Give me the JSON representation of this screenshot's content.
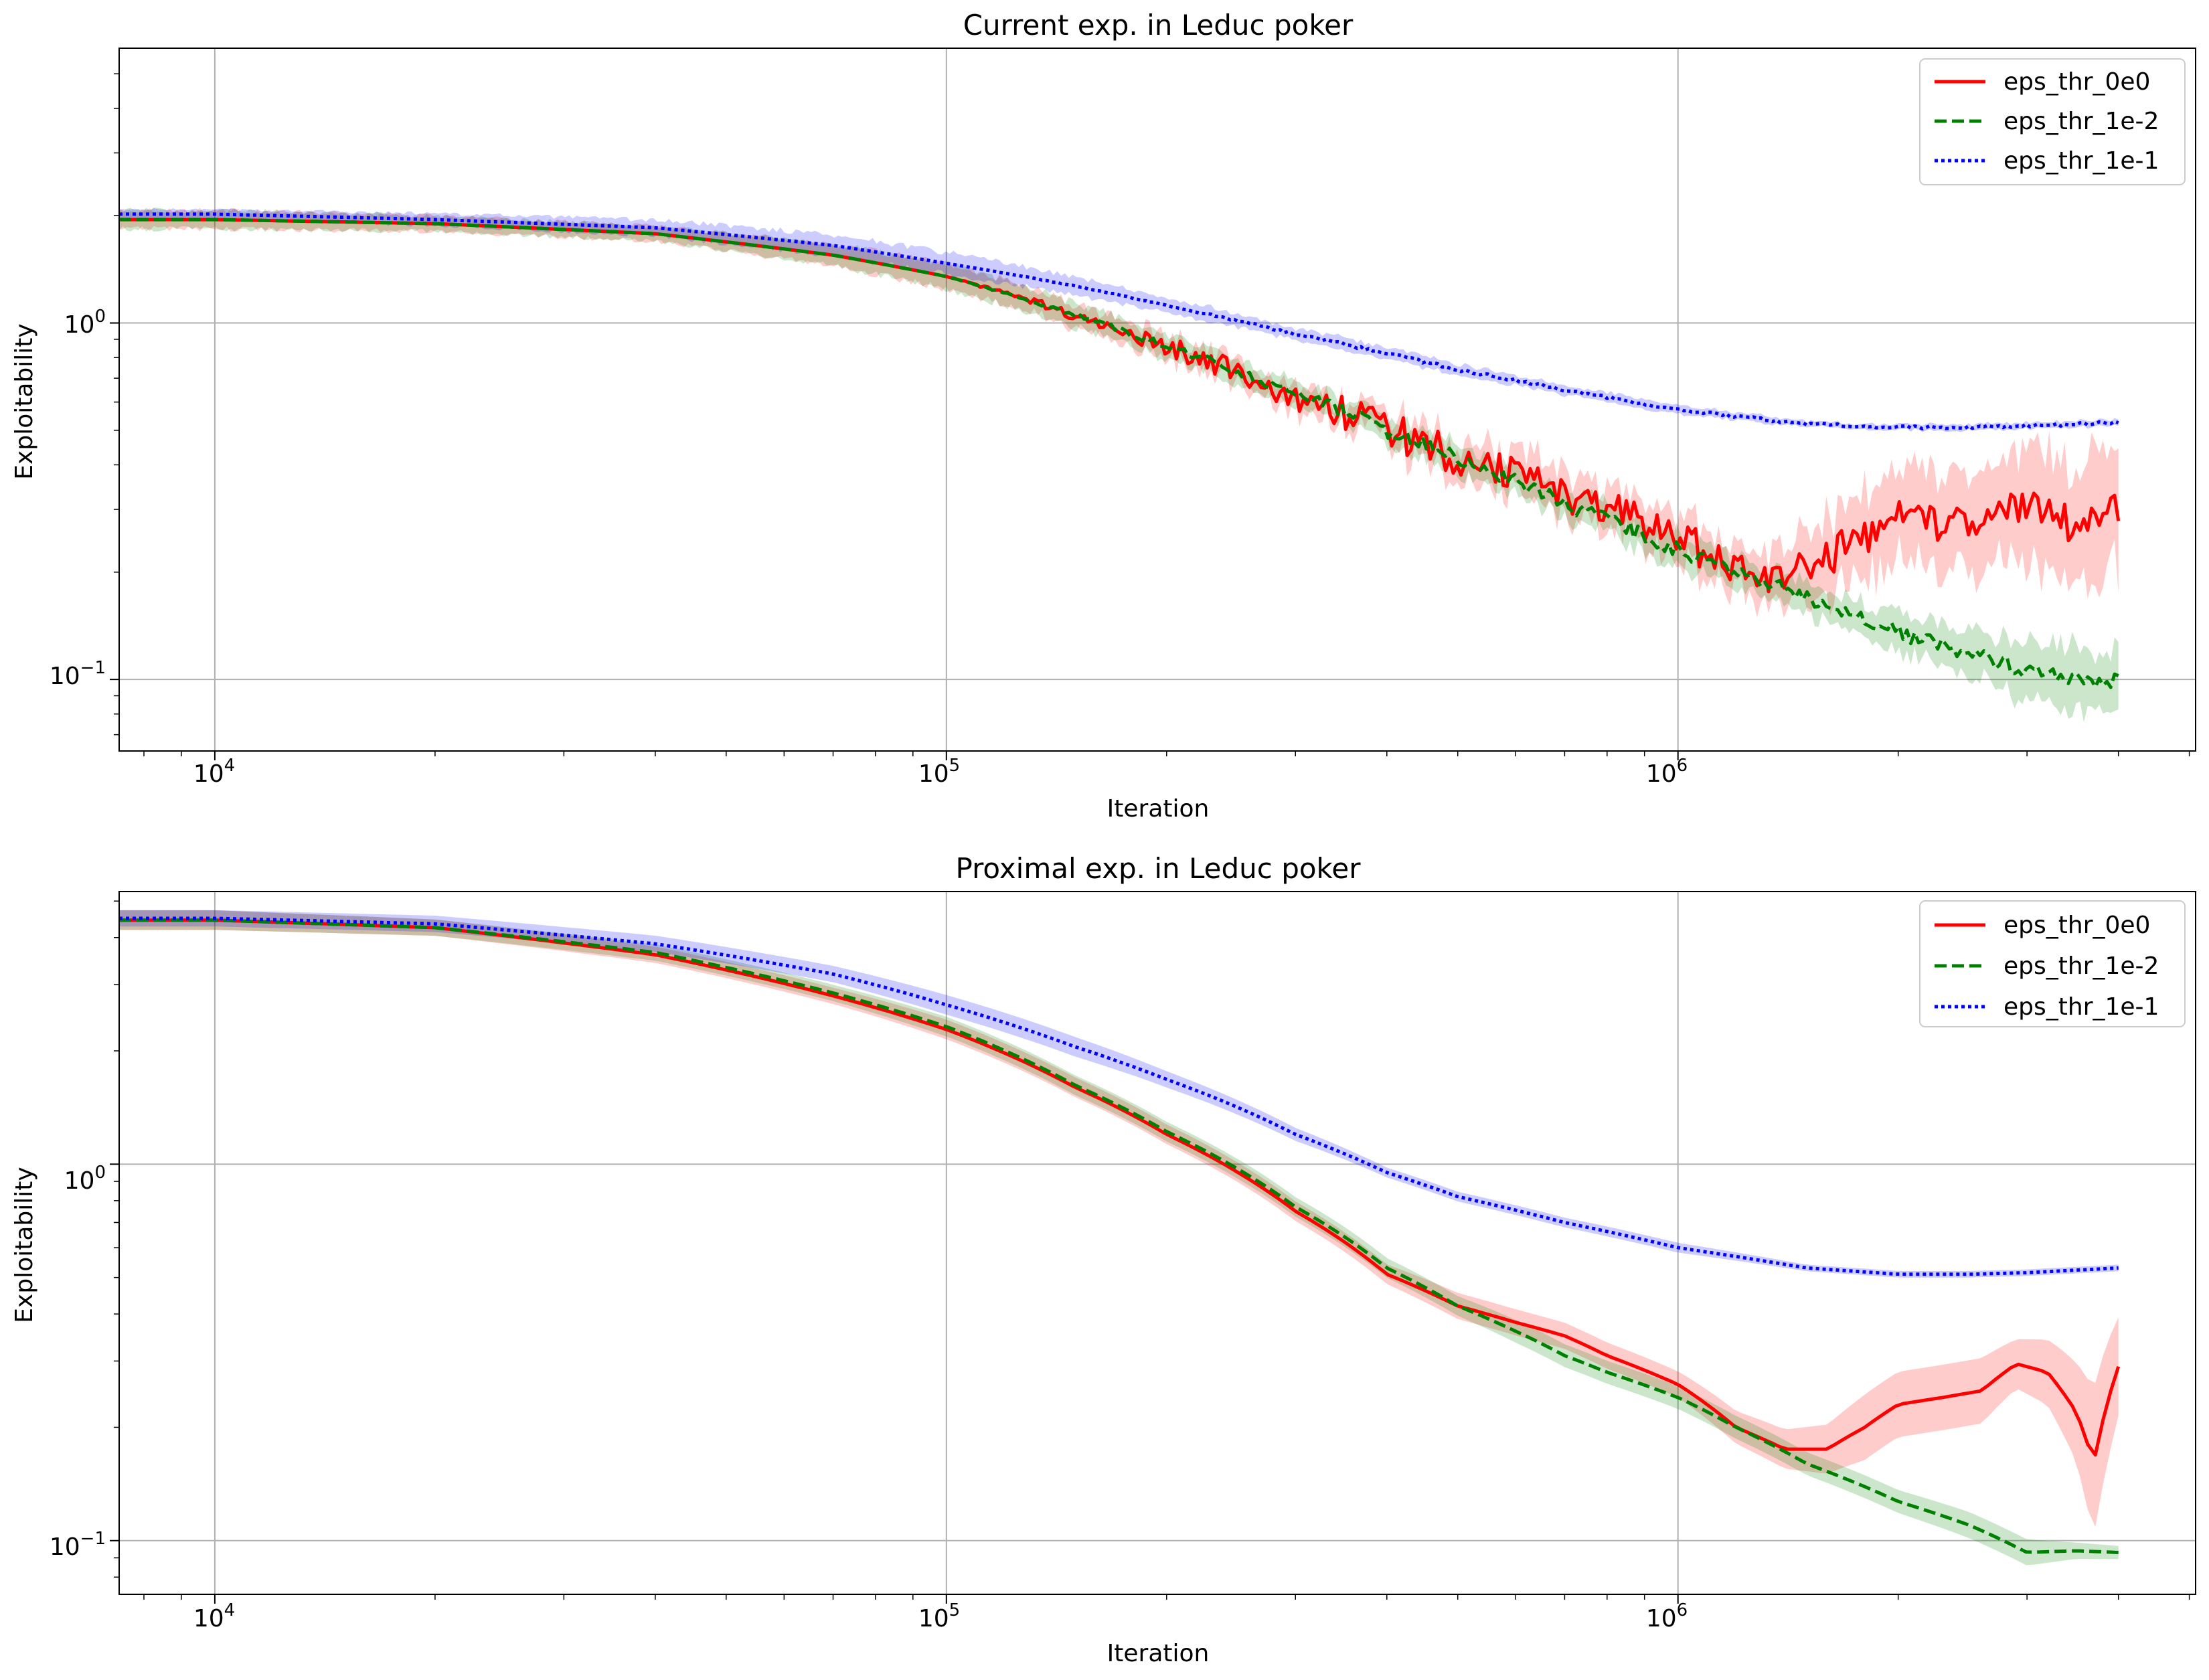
{
  "chart_data": [
    {
      "type": "line",
      "title": "Current exp. in Leduc poker",
      "xlabel": "Iteration",
      "ylabel": "Exploitability",
      "xscale": "log",
      "yscale": "log",
      "xlim": [
        7400,
        5100000
      ],
      "ylim": [
        0.063,
        5.9
      ],
      "xticks": [
        {
          "value": 10000,
          "base": "10",
          "exp": "4"
        },
        {
          "value": 100000,
          "base": "10",
          "exp": "5"
        },
        {
          "value": 1000000,
          "base": "10",
          "exp": "6"
        }
      ],
      "yticks": [
        {
          "value": 0.1,
          "base": "10",
          "exp": "−1"
        },
        {
          "value": 1,
          "base": "10",
          "exp": "0"
        }
      ],
      "grid": true,
      "legend_position": "top-right",
      "series": [
        {
          "name": "eps_thr_0e0",
          "color": "#ff0000",
          "style": "solid",
          "x": [
            7400,
            10000,
            20000,
            40000,
            70000,
            100000,
            150000,
            200000,
            300000,
            400000,
            500000,
            600000,
            700000,
            800000,
            1000000,
            1200000,
            1400000,
            1600000,
            2000000,
            2500000,
            3000000,
            3500000,
            4000000
          ],
          "y": [
            1.95,
            1.95,
            1.9,
            1.78,
            1.55,
            1.35,
            1.05,
            0.86,
            0.62,
            0.5,
            0.42,
            0.37,
            0.33,
            0.3,
            0.25,
            0.2,
            0.19,
            0.22,
            0.28,
            0.27,
            0.31,
            0.27,
            0.3
          ],
          "band": [
            0.06,
            0.06,
            0.05,
            0.05,
            0.07,
            0.08,
            0.08,
            0.08,
            0.08,
            0.1,
            0.12,
            0.14,
            0.15,
            0.15,
            0.15,
            0.15,
            0.18,
            0.25,
            0.3,
            0.3,
            0.35,
            0.4,
            0.4
          ],
          "noise": 0.12
        },
        {
          "name": "eps_thr_1e-2",
          "color": "#008000",
          "style": "dashed",
          "x": [
            7400,
            10000,
            20000,
            40000,
            70000,
            100000,
            150000,
            200000,
            300000,
            400000,
            500000,
            600000,
            700000,
            800000,
            1000000,
            1200000,
            1500000,
            2000000,
            2500000,
            3000000,
            3500000,
            4000000
          ],
          "y": [
            1.95,
            1.95,
            1.9,
            1.78,
            1.55,
            1.35,
            1.05,
            0.86,
            0.63,
            0.5,
            0.42,
            0.36,
            0.31,
            0.28,
            0.23,
            0.2,
            0.17,
            0.135,
            0.118,
            0.106,
            0.1,
            0.099
          ],
          "band": [
            0.06,
            0.06,
            0.05,
            0.05,
            0.07,
            0.08,
            0.08,
            0.08,
            0.08,
            0.08,
            0.09,
            0.09,
            0.1,
            0.1,
            0.1,
            0.1,
            0.1,
            0.12,
            0.15,
            0.2,
            0.22,
            0.2
          ],
          "noise": 0.05
        },
        {
          "name": "eps_thr_1e-1",
          "color": "#0000ff",
          "style": "dotted",
          "x": [
            7400,
            10000,
            20000,
            40000,
            70000,
            100000,
            150000,
            200000,
            300000,
            400000,
            500000,
            700000,
            1000000,
            1500000,
            2000000,
            2500000,
            3000000,
            4000000
          ],
          "y": [
            2.02,
            2.02,
            1.95,
            1.85,
            1.65,
            1.47,
            1.27,
            1.12,
            0.93,
            0.82,
            0.74,
            0.65,
            0.57,
            0.52,
            0.51,
            0.51,
            0.515,
            0.525
          ],
          "band": [
            0.03,
            0.03,
            0.04,
            0.05,
            0.07,
            0.07,
            0.06,
            0.05,
            0.04,
            0.04,
            0.035,
            0.03,
            0.03,
            0.02,
            0.02,
            0.02,
            0.02,
            0.02
          ],
          "noise": 0.01
        }
      ]
    },
    {
      "type": "line",
      "title": "Proximal exp. in Leduc poker",
      "xlabel": "Iteration",
      "ylabel": "Exploitability",
      "xscale": "log",
      "yscale": "log",
      "xlim": [
        7400,
        5100000
      ],
      "ylim": [
        0.072,
        5.3
      ],
      "xticks": [
        {
          "value": 10000,
          "base": "10",
          "exp": "4"
        },
        {
          "value": 100000,
          "base": "10",
          "exp": "5"
        },
        {
          "value": 1000000,
          "base": "10",
          "exp": "6"
        }
      ],
      "yticks": [
        {
          "value": 0.1,
          "base": "10",
          "exp": "−1"
        },
        {
          "value": 1,
          "base": "10",
          "exp": "0"
        }
      ],
      "grid": true,
      "legend_position": "top-right",
      "series": [
        {
          "name": "eps_thr_0e0",
          "color": "#ff0000",
          "style": "solid",
          "x": [
            7400,
            10000,
            20000,
            40000,
            70000,
            100000,
            150000,
            200000,
            300000,
            400000,
            500000,
            600000,
            700000,
            800000,
            1000000,
            1200000,
            1400000,
            1600000,
            1800000,
            2000000,
            2300000,
            2600000,
            2900000,
            3200000,
            3500000,
            3700000,
            4000000
          ],
          "y": [
            4.45,
            4.45,
            4.25,
            3.6,
            2.8,
            2.28,
            1.6,
            1.2,
            0.75,
            0.51,
            0.42,
            0.38,
            0.35,
            0.31,
            0.26,
            0.2,
            0.175,
            0.175,
            0.2,
            0.23,
            0.24,
            0.25,
            0.295,
            0.28,
            0.22,
            0.16,
            0.29
          ],
          "band": [
            0.06,
            0.06,
            0.05,
            0.05,
            0.05,
            0.06,
            0.06,
            0.06,
            0.06,
            0.06,
            0.08,
            0.08,
            0.08,
            0.08,
            0.08,
            0.1,
            0.12,
            0.15,
            0.2,
            0.2,
            0.2,
            0.2,
            0.15,
            0.2,
            0.3,
            0.45,
            0.3
          ],
          "noise": 0
        },
        {
          "name": "eps_thr_1e-2",
          "color": "#008000",
          "style": "dashed",
          "x": [
            7400,
            10000,
            20000,
            40000,
            70000,
            100000,
            150000,
            200000,
            300000,
            400000,
            500000,
            600000,
            700000,
            800000,
            1000000,
            1200000,
            1500000,
            2000000,
            2500000,
            3000000,
            3500000,
            4000000
          ],
          "y": [
            4.45,
            4.45,
            4.25,
            3.65,
            2.85,
            2.32,
            1.62,
            1.22,
            0.77,
            0.53,
            0.42,
            0.36,
            0.31,
            0.28,
            0.24,
            0.2,
            0.16,
            0.127,
            0.11,
            0.093,
            0.094,
            0.093
          ],
          "band": [
            0.06,
            0.06,
            0.05,
            0.05,
            0.05,
            0.06,
            0.06,
            0.06,
            0.06,
            0.06,
            0.06,
            0.07,
            0.07,
            0.07,
            0.07,
            0.07,
            0.07,
            0.07,
            0.08,
            0.08,
            0.05,
            0.04
          ],
          "noise": 0
        },
        {
          "name": "eps_thr_1e-1",
          "color": "#0000ff",
          "style": "dotted",
          "x": [
            7400,
            10000,
            20000,
            40000,
            70000,
            100000,
            150000,
            200000,
            300000,
            400000,
            500000,
            700000,
            1000000,
            1500000,
            2000000,
            2500000,
            3000000,
            4000000
          ],
          "y": [
            4.5,
            4.5,
            4.35,
            3.85,
            3.2,
            2.65,
            2.05,
            1.68,
            1.2,
            0.95,
            0.82,
            0.7,
            0.6,
            0.53,
            0.51,
            0.51,
            0.515,
            0.53
          ],
          "band": [
            0.05,
            0.05,
            0.05,
            0.05,
            0.05,
            0.06,
            0.06,
            0.05,
            0.04,
            0.03,
            0.03,
            0.03,
            0.03,
            0.02,
            0.02,
            0.02,
            0.02,
            0.02
          ],
          "noise": 0
        }
      ]
    }
  ]
}
